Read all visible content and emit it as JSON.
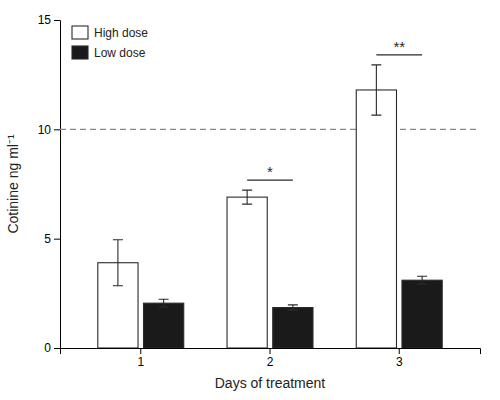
{
  "chart_data": {
    "type": "bar",
    "xlabel": "Days of treatment",
    "ylabel": "Cotinine ng ml⁻¹",
    "categories": [
      "1",
      "2",
      "3"
    ],
    "series": [
      {
        "name": "High dose",
        "color": "#ffffff",
        "values": [
          3.9,
          6.9,
          11.8
        ],
        "errors": [
          1.05,
          0.32,
          1.15
        ]
      },
      {
        "name": "Low dose",
        "color": "#1a1a1a",
        "values": [
          2.05,
          1.85,
          3.1
        ],
        "errors": [
          0.18,
          0.12,
          0.18
        ]
      }
    ],
    "ylim": [
      0,
      15
    ],
    "yticks": [
      0,
      5,
      10,
      15
    ],
    "reference_lines": [
      10.0
    ],
    "annotations": [
      {
        "text": "*",
        "category": "2"
      },
      {
        "text": "**",
        "category": "3"
      }
    ],
    "legend": "upper left",
    "grid": false
  }
}
